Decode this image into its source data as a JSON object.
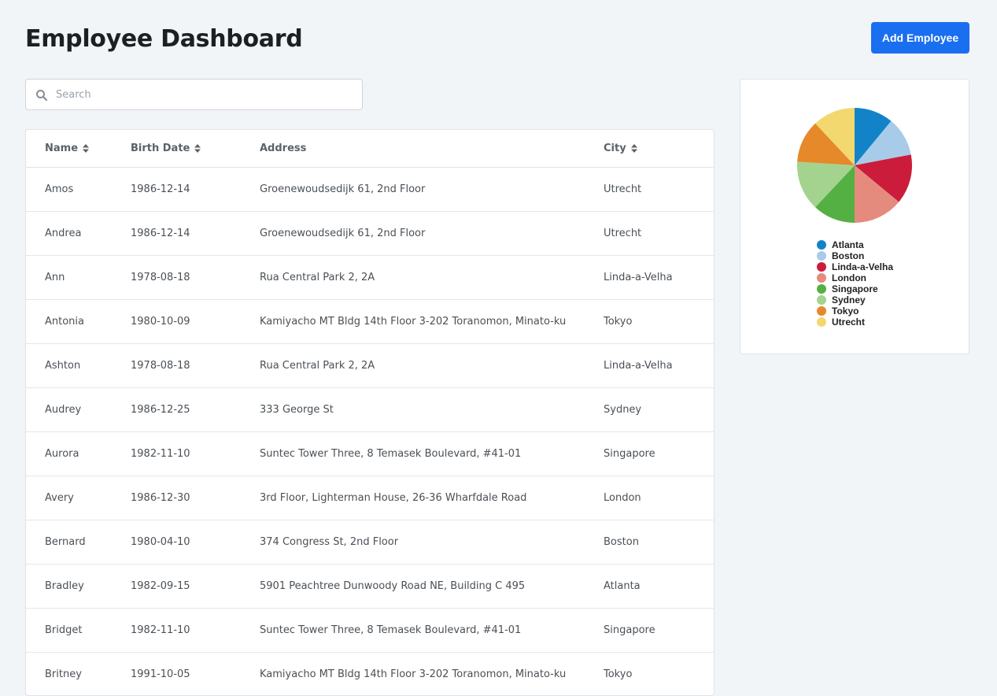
{
  "header": {
    "title": "Employee Dashboard",
    "add_label": "Add Employee"
  },
  "search": {
    "placeholder": "Search",
    "value": ""
  },
  "table": {
    "columns": [
      {
        "label": "Name",
        "sortable": true
      },
      {
        "label": "Birth Date",
        "sortable": true
      },
      {
        "label": "Address",
        "sortable": false
      },
      {
        "label": "City",
        "sortable": true
      }
    ],
    "rows": [
      [
        "Amos",
        "1986-12-14",
        "Groenewoudsedijk 61, 2nd Floor",
        "Utrecht"
      ],
      [
        "Andrea",
        "1986-12-14",
        "Groenewoudsedijk 61, 2nd Floor",
        "Utrecht"
      ],
      [
        "Ann",
        "1978-08-18",
        "Rua Central Park 2, 2A",
        "Linda-a-Velha"
      ],
      [
        "Antonia",
        "1980-10-09",
        "Kamiyacho MT Bldg 14th Floor 3-202 Toranomon, Minato-ku",
        "Tokyo"
      ],
      [
        "Ashton",
        "1978-08-18",
        "Rua Central Park 2, 2A",
        "Linda-a-Velha"
      ],
      [
        "Audrey",
        "1986-12-25",
        "333 George St",
        "Sydney"
      ],
      [
        "Aurora",
        "1982-11-10",
        "Suntec Tower Three, 8 Temasek Boulevard, #41-01",
        "Singapore"
      ],
      [
        "Avery",
        "1986-12-30",
        "3rd Floor, Lighterman House, 26-36 Wharfdale Road",
        "London"
      ],
      [
        "Bernard",
        "1980-04-10",
        "374 Congress St, 2nd Floor",
        "Boston"
      ],
      [
        "Bradley",
        "1982-09-15",
        "5901 Peachtree Dunwoody Road NE, Building C 495",
        "Atlanta"
      ],
      [
        "Bridget",
        "1982-11-10",
        "Suntec Tower Three, 8 Temasek Boulevard, #41-01",
        "Singapore"
      ],
      [
        "Britney",
        "1991-10-05",
        "Kamiyacho MT Bldg 14th Floor 3-202 Toranomon, Minato-ku",
        "Tokyo"
      ]
    ]
  },
  "chart_data": {
    "type": "pie",
    "title": "",
    "legend": "bottom",
    "slices": [
      {
        "label": "Atlanta",
        "value": 11,
        "color": "#1283c8"
      },
      {
        "label": "Boston",
        "value": 11,
        "color": "#a7cbe8"
      },
      {
        "label": "Linda-a-Velha",
        "value": 14,
        "color": "#cc1c3c"
      },
      {
        "label": "London",
        "value": 14,
        "color": "#e58b7e"
      },
      {
        "label": "Singapore",
        "value": 12,
        "color": "#55b043"
      },
      {
        "label": "Sydney",
        "value": 14,
        "color": "#a4d38f"
      },
      {
        "label": "Tokyo",
        "value": 12,
        "color": "#e5892a"
      },
      {
        "label": "Utrecht",
        "value": 12,
        "color": "#f3d86f"
      }
    ]
  }
}
